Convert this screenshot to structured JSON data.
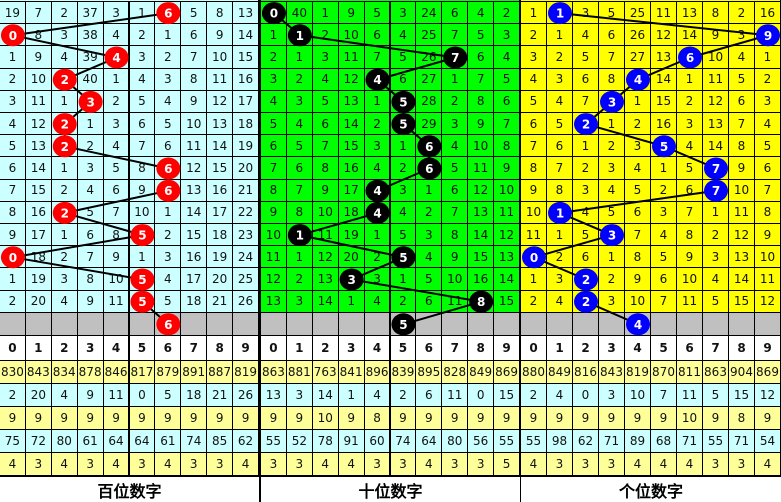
{
  "chart_data": {
    "type": "table",
    "header_digits": [
      "0",
      "1",
      "2",
      "3",
      "4",
      "5",
      "6",
      "7",
      "8",
      "9"
    ],
    "panels": [
      {
        "title": "百位数字",
        "bg": "#ccffff",
        "ball_color": "#ff0000",
        "ball_text": "#ffffff",
        "rows": [
          [
            19,
            7,
            2,
            37,
            3,
            1,
            6,
            5,
            8,
            13
          ],
          [
            0,
            8,
            3,
            38,
            4,
            2,
            1,
            6,
            9,
            14
          ],
          [
            1,
            9,
            4,
            39,
            4,
            3,
            2,
            7,
            10,
            15
          ],
          [
            2,
            10,
            2,
            40,
            1,
            4,
            3,
            8,
            11,
            16
          ],
          [
            3,
            11,
            1,
            3,
            2,
            5,
            4,
            9,
            12,
            17
          ],
          [
            4,
            12,
            2,
            1,
            3,
            6,
            5,
            10,
            13,
            18
          ],
          [
            5,
            13,
            2,
            2,
            4,
            7,
            6,
            11,
            14,
            19
          ],
          [
            6,
            14,
            1,
            3,
            5,
            8,
            6,
            12,
            15,
            20
          ],
          [
            7,
            15,
            2,
            4,
            6,
            9,
            6,
            13,
            16,
            21
          ],
          [
            8,
            16,
            2,
            5,
            7,
            10,
            1,
            14,
            17,
            22
          ],
          [
            9,
            17,
            1,
            6,
            8,
            5,
            2,
            15,
            18,
            23
          ],
          [
            0,
            18,
            2,
            7,
            9,
            1,
            3,
            16,
            19,
            24
          ],
          [
            1,
            19,
            3,
            8,
            10,
            5,
            4,
            17,
            20,
            25
          ],
          [
            2,
            20,
            4,
            9,
            11,
            5,
            5,
            18,
            21,
            26
          ]
        ],
        "winning": [
          6,
          0,
          4,
          2,
          3,
          2,
          2,
          6,
          6,
          2,
          5,
          0,
          5,
          5
        ],
        "next": 6,
        "stats": [
          [
            830,
            843,
            834,
            878,
            846,
            817,
            879,
            891,
            887,
            819
          ],
          [
            2,
            20,
            4,
            9,
            11,
            0,
            5,
            18,
            21,
            26
          ],
          [
            9,
            9,
            9,
            9,
            9,
            9,
            9,
            9,
            9,
            9
          ],
          [
            75,
            72,
            80,
            61,
            64,
            64,
            61,
            74,
            85,
            62
          ],
          [
            4,
            3,
            4,
            3,
            4,
            3,
            4,
            3,
            3,
            4
          ]
        ]
      },
      {
        "title": "十位数字",
        "bg": "#00ff00",
        "ball_color": "#000000",
        "ball_text": "#ffffff",
        "rows": [
          [
            0,
            40,
            1,
            9,
            5,
            3,
            24,
            6,
            4,
            2
          ],
          [
            1,
            1,
            2,
            10,
            6,
            4,
            25,
            7,
            5,
            3
          ],
          [
            2,
            1,
            3,
            11,
            7,
            5,
            26,
            7,
            6,
            4
          ],
          [
            3,
            2,
            4,
            12,
            4,
            6,
            27,
            1,
            7,
            5
          ],
          [
            4,
            3,
            5,
            13,
            1,
            5,
            28,
            2,
            8,
            6
          ],
          [
            5,
            4,
            6,
            14,
            2,
            5,
            29,
            3,
            9,
            7
          ],
          [
            6,
            5,
            7,
            15,
            3,
            1,
            6,
            4,
            10,
            8
          ],
          [
            7,
            6,
            8,
            16,
            4,
            2,
            6,
            5,
            11,
            9
          ],
          [
            8,
            7,
            9,
            17,
            4,
            3,
            1,
            6,
            12,
            10
          ],
          [
            9,
            8,
            10,
            18,
            4,
            4,
            2,
            7,
            13,
            11
          ],
          [
            10,
            1,
            11,
            19,
            1,
            5,
            3,
            8,
            14,
            12
          ],
          [
            11,
            1,
            12,
            20,
            2,
            5,
            4,
            9,
            15,
            13
          ],
          [
            12,
            2,
            13,
            3,
            3,
            1,
            5,
            10,
            16,
            14
          ],
          [
            13,
            3,
            14,
            1,
            4,
            2,
            6,
            11,
            8,
            15
          ]
        ],
        "winning": [
          0,
          1,
          7,
          4,
          5,
          5,
          6,
          6,
          4,
          4,
          1,
          5,
          3,
          8
        ],
        "next": 5,
        "stats": [
          [
            863,
            881,
            763,
            841,
            896,
            839,
            895,
            828,
            849,
            869
          ],
          [
            13,
            3,
            14,
            1,
            4,
            2,
            6,
            11,
            0,
            15
          ],
          [
            9,
            9,
            10,
            9,
            8,
            9,
            9,
            9,
            9,
            9
          ],
          [
            55,
            52,
            78,
            91,
            60,
            74,
            64,
            80,
            56,
            55
          ],
          [
            3,
            3,
            4,
            4,
            3,
            3,
            4,
            3,
            3,
            5
          ]
        ]
      },
      {
        "title": "个位数字",
        "bg": "#ffff00",
        "ball_color": "#0000ff",
        "ball_text": "#ffffff",
        "rows": [
          [
            1,
            1,
            3,
            5,
            25,
            11,
            13,
            8,
            2,
            16
          ],
          [
            2,
            1,
            4,
            6,
            26,
            12,
            14,
            9,
            3,
            9
          ],
          [
            3,
            2,
            5,
            7,
            27,
            13,
            6,
            10,
            4,
            1
          ],
          [
            4,
            3,
            6,
            8,
            4,
            14,
            1,
            11,
            5,
            2
          ],
          [
            5,
            4,
            7,
            3,
            1,
            15,
            2,
            12,
            6,
            3
          ],
          [
            6,
            5,
            2,
            1,
            2,
            16,
            3,
            13,
            7,
            4
          ],
          [
            7,
            6,
            1,
            2,
            3,
            5,
            4,
            14,
            8,
            5
          ],
          [
            8,
            7,
            2,
            3,
            4,
            1,
            5,
            7,
            9,
            6
          ],
          [
            9,
            8,
            3,
            4,
            5,
            2,
            6,
            7,
            10,
            7
          ],
          [
            10,
            1,
            4,
            5,
            6,
            3,
            7,
            1,
            11,
            8
          ],
          [
            11,
            1,
            5,
            3,
            7,
            4,
            8,
            2,
            12,
            9
          ],
          [
            0,
            2,
            6,
            1,
            8,
            5,
            9,
            3,
            13,
            10
          ],
          [
            1,
            3,
            2,
            2,
            9,
            6,
            10,
            4,
            14,
            11
          ],
          [
            2,
            4,
            2,
            3,
            10,
            7,
            11,
            5,
            15,
            12
          ]
        ],
        "winning": [
          1,
          9,
          6,
          4,
          3,
          2,
          5,
          7,
          7,
          1,
          3,
          0,
          2,
          2
        ],
        "next": 4,
        "stats": [
          [
            880,
            849,
            816,
            843,
            819,
            870,
            811,
            863,
            904,
            869
          ],
          [
            2,
            4,
            0,
            3,
            10,
            7,
            11,
            5,
            15,
            12
          ],
          [
            9,
            9,
            9,
            9,
            9,
            9,
            10,
            9,
            8,
            9
          ],
          [
            55,
            98,
            62,
            71,
            89,
            68,
            71,
            55,
            71,
            54
          ],
          [
            4,
            3,
            3,
            3,
            4,
            4,
            4,
            3,
            3,
            4
          ]
        ]
      }
    ],
    "colors": {
      "grey_row": "#c0c0c0",
      "stat_yellow": "#ffff99",
      "stat_cyan": "#ccffff",
      "header_bg": "#ffffff"
    }
  }
}
